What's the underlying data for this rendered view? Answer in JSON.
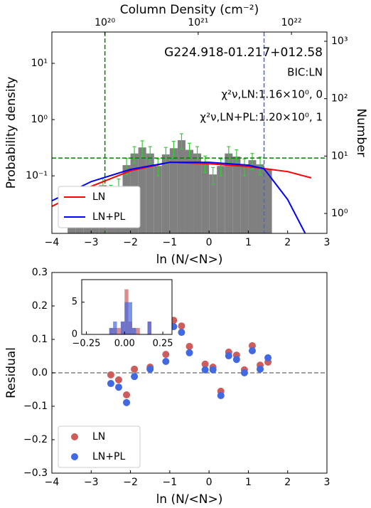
{
  "chart_data": [
    {
      "type": "histogram",
      "xlabel": "ln (N/<N>)",
      "ylabel": "Probability density",
      "y2label": "Number",
      "x2label": "Column Density (cm⁻²)",
      "xlim": [
        -4,
        3
      ],
      "xticks": [
        {
          "value": -4,
          "label": "−4"
        },
        {
          "value": -3,
          "label": "−3"
        },
        {
          "value": -2,
          "label": "−2"
        },
        {
          "value": -1,
          "label": "−1"
        },
        0,
        1,
        2,
        3
      ],
      "yscale": "log",
      "ylim": [
        0.0095,
        36
      ],
      "yticks": [
        {
          "value": 0.1,
          "label": "10⁻¹"
        },
        {
          "value": 1,
          "label": "10⁰"
        },
        {
          "value": 10,
          "label": "10¹"
        }
      ],
      "y2scale": "log",
      "y2lim": [
        0.45,
        1450
      ],
      "y2ticks": [
        {
          "value": 1,
          "label": "10⁰"
        },
        {
          "value": 10,
          "label": "10¹"
        },
        {
          "value": 100,
          "label": "10²"
        },
        {
          "value": 1000,
          "label": "10³"
        }
      ],
      "x2scale": "log",
      "x2lim": [
        2.7e+19,
        2.4e+22
      ],
      "x2ticks": [
        {
          "value": 1e+20,
          "label": "10²⁰"
        },
        {
          "value": 1e+21,
          "label": "10²¹"
        },
        {
          "value": 1e+22,
          "label": "10²²"
        }
      ],
      "bins": [
        -3.6,
        -3.4,
        -3.2,
        -3.0,
        -2.8,
        -2.6,
        -2.4,
        -2.2,
        -2.0,
        -1.8,
        -1.6,
        -1.4,
        -1.2,
        -1.0,
        -0.8,
        -0.6,
        -0.4,
        -0.2,
        0.0,
        0.2,
        0.4,
        0.6,
        0.8,
        1.0,
        1.2,
        1.4,
        1.6
      ],
      "values": [
        0.016,
        0.021,
        0.029,
        0.044,
        0.068,
        0.05,
        0.065,
        0.155,
        0.25,
        0.32,
        0.25,
        0.15,
        0.24,
        0.31,
        0.43,
        0.29,
        0.25,
        0.17,
        0.106,
        0.15,
        0.25,
        0.22,
        0.15,
        0.19,
        0.16,
        0.13
      ],
      "color": "#808080",
      "errors": [
        null,
        null,
        null,
        0.015,
        0.024,
        0.018,
        0.023,
        0.05,
        0.08,
        0.1,
        0.08,
        0.05,
        0.08,
        0.1,
        0.13,
        0.09,
        0.08,
        0.055,
        0.035,
        0.05,
        0.08,
        0.07,
        0.05,
        0.06,
        0.055,
        null
      ],
      "error_color": "#32cd32",
      "series": [
        {
          "name": "LN",
          "color": "#ff0000",
          "x": [
            -4,
            -3,
            -2,
            -1,
            0,
            1,
            2,
            2.6
          ],
          "values": [
            0.0286,
            0.065,
            0.123,
            0.174,
            0.164,
            0.146,
            0.119,
            0.092
          ]
        },
        {
          "name": "LN+PL",
          "color": "#0000ff",
          "x": [
            -4,
            -3,
            -2,
            -1,
            0,
            1,
            1.4,
            2,
            2.45
          ],
          "values": [
            0.036,
            0.079,
            0.13,
            0.174,
            0.174,
            0.155,
            0.134,
            0.038,
            0.0094
          ]
        }
      ],
      "hlines": [
        {
          "value": 0.207,
          "color": "#008000"
        }
      ],
      "vlines": [
        {
          "value": -2.65,
          "color": "#008000"
        },
        {
          "value": 1.4,
          "color": "#4169e1"
        }
      ],
      "annotations": [
        "G224.918-01.217+012.58",
        "BIC:LN",
        "χ²ν,LN:1.16×10⁰, 0",
        "χ²ν,LN+PL:1.20×10⁰, 1"
      ],
      "legend": "lower left"
    },
    {
      "type": "scatter",
      "xlabel": "ln (N/<N>)",
      "ylabel": "Residual",
      "xlim": [
        -4,
        3
      ],
      "xticks": [
        {
          "value": -4,
          "label": "−4"
        },
        {
          "value": -3,
          "label": "−3"
        },
        {
          "value": -2,
          "label": "−2"
        },
        {
          "value": -1,
          "label": "−1"
        },
        0,
        1,
        2,
        3
      ],
      "ylim": [
        -0.3,
        0.3
      ],
      "yticks": [
        {
          "value": -0.3,
          "label": "−0.3"
        },
        {
          "value": -0.2,
          "label": "−0.2"
        },
        {
          "value": -0.1,
          "label": "−0.1"
        },
        {
          "value": 0,
          "label": "0.0"
        },
        0.1,
        0.2,
        0.3
      ],
      "x": [
        -2.5,
        -2.3,
        -2.1,
        -1.9,
        -1.5,
        -1.1,
        -0.9,
        -0.7,
        -0.5,
        -0.1,
        0.1,
        0.3,
        0.5,
        0.7,
        0.9,
        1.1,
        1.3,
        1.5
      ],
      "series": [
        {
          "name": "LN",
          "color": "#cd5c5c",
          "values": [
            -0.006,
            -0.021,
            -0.066,
            0.011,
            0.017,
            0.055,
            0.157,
            0.14,
            0.079,
            0.026,
            0.017,
            -0.055,
            0.062,
            0.053,
            0.009,
            0.081,
            0.023,
            0.032
          ]
        },
        {
          "name": "LN+PL",
          "color": "#4169e1",
          "values": [
            -0.032,
            -0.043,
            -0.089,
            -0.011,
            0.011,
            0.034,
            0.138,
            0.121,
            0.06,
            0.009,
            0.009,
            -0.068,
            0.051,
            0.04,
            0,
            0.066,
            0.011,
            0.045
          ]
        }
      ],
      "hlines": [
        {
          "value": 0,
          "color": "#808080"
        }
      ],
      "legend": "lower left"
    },
    {
      "type": "histogram",
      "xlim": [
        -0.28,
        0.31
      ],
      "xticks": [
        {
          "value": -0.25,
          "label": "−0.25"
        },
        {
          "value": 0,
          "label": "0.00"
        },
        0.25
      ],
      "ylim": [
        0,
        8.5
      ],
      "yticks": [
        0,
        5
      ],
      "bins": [
        -0.1,
        -0.075,
        -0.05,
        -0.025,
        0,
        0.025,
        0.05,
        0.075,
        0.1,
        0.125,
        0.15,
        0.175
      ],
      "series": [
        {
          "color": "#cd5c5c",
          "values": [
            1,
            1,
            1,
            2,
            7,
            2,
            1,
            1,
            0,
            0,
            2
          ]
        },
        {
          "color": "#4169e1",
          "values": [
            1,
            2,
            0,
            2,
            5,
            5,
            1,
            0,
            0,
            0,
            2
          ]
        }
      ]
    }
  ]
}
